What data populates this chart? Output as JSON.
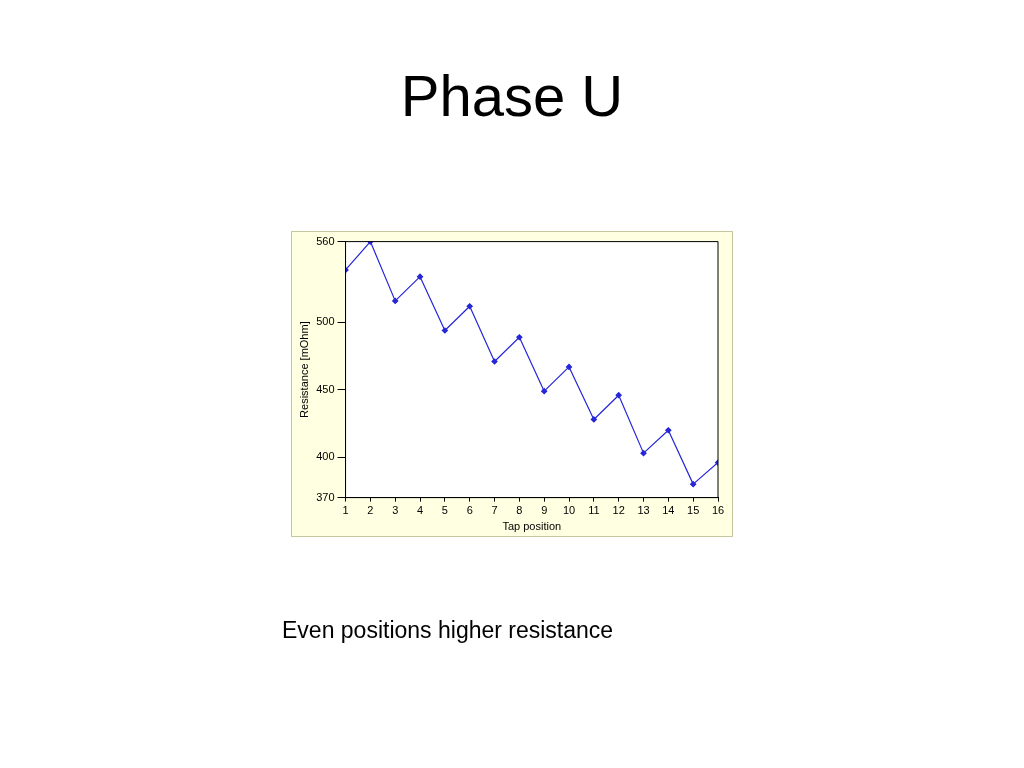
{
  "chart_data": {
    "type": "line",
    "title": "Phase U",
    "xlabel": "Tap position",
    "ylabel": "Resistance [mOhm]",
    "x": [
      1,
      2,
      3,
      4,
      5,
      6,
      7,
      8,
      9,
      10,
      11,
      12,
      13,
      14,
      15,
      16
    ],
    "series": [
      {
        "color": "#2626d9",
        "values": [
          539,
          560,
          516,
          534,
          494,
          512,
          471,
          489,
          449,
          467,
          428,
          446,
          403,
          420,
          380,
          396
        ]
      }
    ],
    "xlim": [
      1,
      16
    ],
    "xticks": [
      1,
      2,
      3,
      4,
      5,
      6,
      7,
      8,
      9,
      10,
      11,
      12,
      13,
      14,
      15,
      16
    ],
    "ylim": [
      370,
      560
    ],
    "yticks": [
      370,
      400,
      450,
      500,
      560
    ],
    "grid": false,
    "legend": false,
    "marker": "diamond",
    "line_style": "solid",
    "annotations": [
      "Even positions higher resistance"
    ]
  }
}
